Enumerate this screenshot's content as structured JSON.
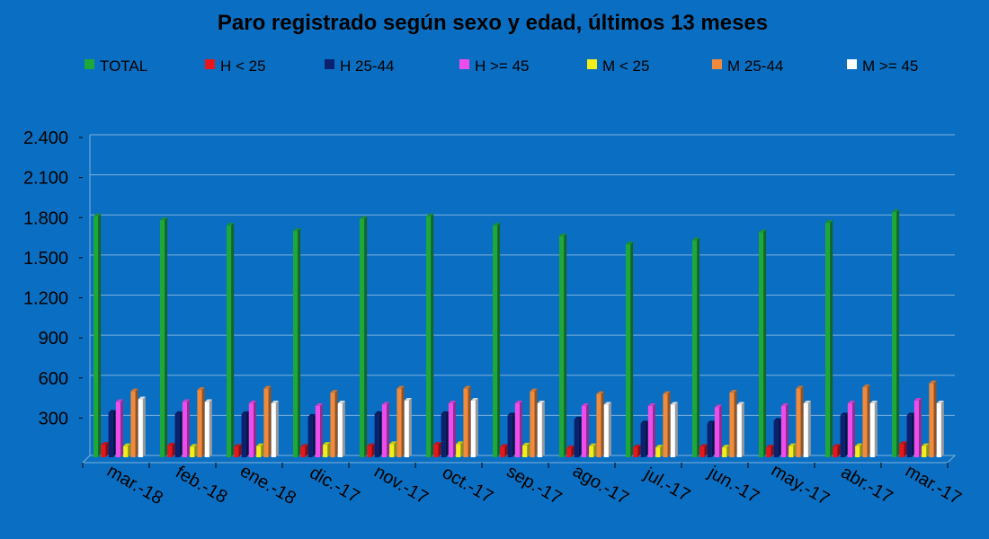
{
  "chart_data": {
    "type": "bar",
    "title": "Paro registrado según sexo y edad, últimos 13 meses",
    "categories": [
      "mar.-18",
      "feb.-18",
      "ene.-18",
      "dic.-17",
      "nov.-17",
      "oct.-17",
      "sep.-17",
      "ago.-17",
      "jul.-17",
      "jun.-17",
      "may.-17",
      "abr.-17",
      "mar.-17"
    ],
    "series": [
      {
        "name": "TOTAL",
        "color": "#1fa83a",
        "values": [
          1790,
          1760,
          1720,
          1680,
          1770,
          1790,
          1720,
          1640,
          1580,
          1610,
          1670,
          1740,
          1820
        ]
      },
      {
        "name": "H < 25",
        "color": "#e8161b",
        "values": [
          80,
          75,
          65,
          65,
          70,
          80,
          65,
          55,
          60,
          65,
          60,
          65,
          85
        ]
      },
      {
        "name": "H 25-44",
        "color": "#0c2070",
        "values": [
          320,
          310,
          310,
          290,
          310,
          310,
          300,
          270,
          240,
          240,
          260,
          300,
          300
        ]
      },
      {
        "name": "H >= 45",
        "color": "#ee4dee",
        "values": [
          400,
          400,
          390,
          370,
          380,
          390,
          390,
          370,
          370,
          360,
          370,
          390,
          410
        ]
      },
      {
        "name": "M < 25",
        "color": "#f2ee1a",
        "values": [
          70,
          65,
          70,
          80,
          85,
          85,
          75,
          70,
          60,
          60,
          70,
          70,
          70
        ]
      },
      {
        "name": "M 25-44",
        "color": "#f28a3c",
        "values": [
          480,
          490,
          500,
          470,
          500,
          500,
          480,
          460,
          460,
          470,
          500,
          510,
          540
        ]
      },
      {
        "name": "M >= 45",
        "color": "#ffffff",
        "values": [
          420,
          400,
          390,
          390,
          410,
          410,
          390,
          380,
          380,
          380,
          390,
          390,
          390
        ]
      }
    ],
    "yticks": [
      "2.400",
      "2.100",
      "1.800",
      "1.500",
      "1.200",
      "900",
      "600",
      "300"
    ],
    "ytick_values": [
      2400,
      2100,
      1800,
      1500,
      1200,
      900,
      600,
      300
    ],
    "ylim": [
      0,
      2400
    ],
    "legend_position": "top",
    "grid": true
  }
}
